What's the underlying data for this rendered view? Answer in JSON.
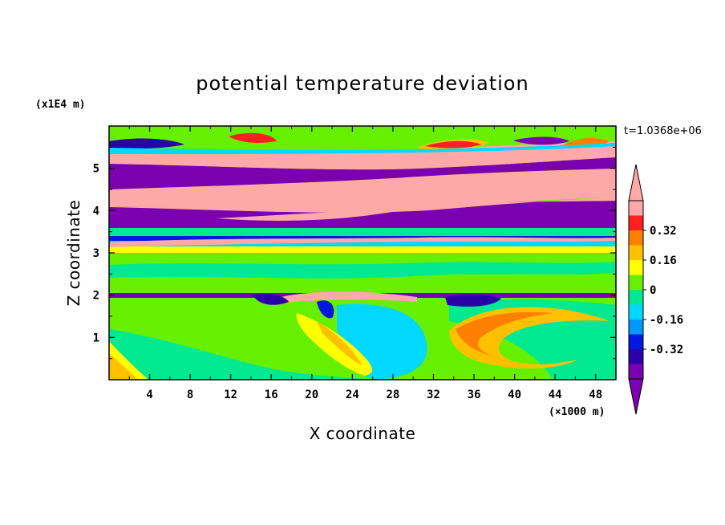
{
  "chart_data": {
    "type": "heatmap",
    "title": "potential temperature deviation",
    "xlabel": "X coordinate",
    "ylabel": "Z coordinate",
    "x_unit": "(×1000 m)",
    "y_unit": "(x1E4 m)",
    "time_label": "t=1.0368e+06",
    "xlim": [
      0,
      50
    ],
    "ylim": [
      0,
      6
    ],
    "x_ticks": [
      "4",
      "8",
      "12",
      "16",
      "20",
      "24",
      "28",
      "32",
      "36",
      "40",
      "44",
      "48"
    ],
    "y_ticks": [
      "1",
      "2",
      "3",
      "4",
      "5"
    ],
    "colorbar": {
      "levels": [
        -0.48,
        -0.4,
        -0.32,
        -0.24,
        -0.16,
        -0.08,
        0,
        0.08,
        0.16,
        0.24,
        0.32,
        0.4,
        0.48
      ],
      "colors": [
        "#7a00b0",
        "#2a00a8",
        "#0018e0",
        "#0098ff",
        "#00d8ff",
        "#00e890",
        "#66f000",
        "#ffff00",
        "#ffc000",
        "#ff7f00",
        "#ff2020",
        "#ffa8a8"
      ],
      "tick_labels": [
        "0.32",
        "0.16",
        "0",
        "-0.16",
        "-0.32"
      ],
      "tick_values": [
        0.32,
        0.16,
        0,
        -0.16,
        -0.32
      ],
      "extend": "both"
    },
    "bands": [
      {
        "z": [
          0.0,
          2.0
        ],
        "dominant": "green/cyan",
        "features": "orange and yellow lobes near x=0-4, 18-26 and 32-44"
      },
      {
        "z": [
          2.0,
          3.0
        ],
        "dominant": "green",
        "features": "thin purple/blue/pink strip near z=2"
      },
      {
        "z": [
          3.0,
          3.5
        ],
        "dominant": "cyan/green",
        "features": "thin blue and pink stripes"
      },
      {
        "z": [
          3.5,
          5.2
        ],
        "dominant": "alternating purple and pink layers",
        "features": "tilted layers"
      },
      {
        "z": [
          5.2,
          6.0
        ],
        "dominant": "green/pink",
        "features": "red and orange lobes near the top"
      }
    ]
  }
}
